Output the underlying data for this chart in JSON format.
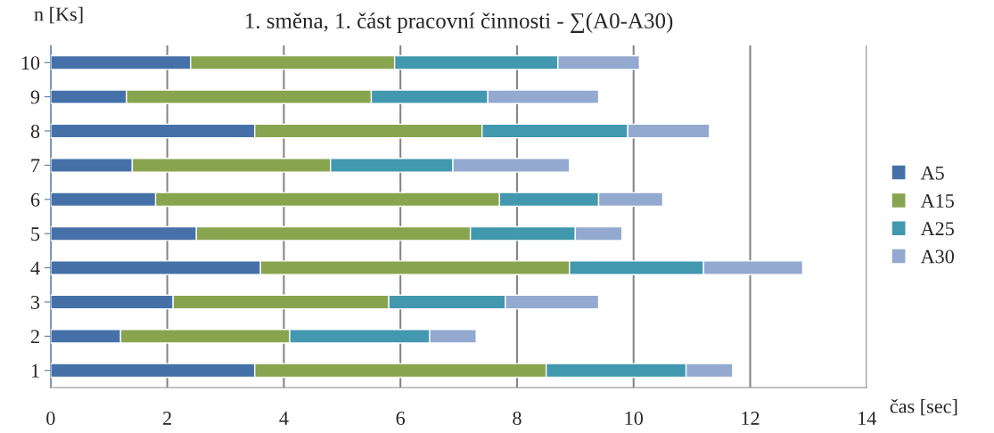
{
  "chart_data": {
    "type": "bar",
    "orientation": "horizontal",
    "stacked": true,
    "title": "1. směna, 1. část pracovní činnosti - ∑(A0-A30)",
    "xlabel": "čas [sec]",
    "ylabel": "n [Ks]",
    "categories": [
      "10",
      "9",
      "8",
      "7",
      "6",
      "5",
      "4",
      "3",
      "2",
      "1"
    ],
    "series": [
      {
        "name": "A5",
        "color": "#4571a8",
        "values": [
          2.4,
          1.3,
          3.5,
          1.4,
          1.8,
          2.5,
          3.6,
          2.1,
          1.2,
          3.5
        ]
      },
      {
        "name": "A15",
        "color": "#89a44e",
        "values": [
          3.5,
          4.2,
          3.9,
          3.4,
          5.9,
          4.7,
          5.3,
          3.7,
          2.9,
          5.0
        ]
      },
      {
        "name": "A25",
        "color": "#4198af",
        "values": [
          2.8,
          2.0,
          2.5,
          2.1,
          1.7,
          1.8,
          2.3,
          2.0,
          2.4,
          2.4
        ]
      },
      {
        "name": "A30",
        "color": "#93a9cf",
        "values": [
          1.4,
          1.9,
          1.4,
          2.0,
          1.1,
          0.8,
          1.7,
          1.6,
          0.8,
          0.8
        ]
      }
    ],
    "xlim": [
      0,
      14
    ],
    "xticks": [
      0,
      2,
      4,
      6,
      8,
      10,
      12,
      14
    ],
    "grid": "x",
    "legend": "right"
  }
}
